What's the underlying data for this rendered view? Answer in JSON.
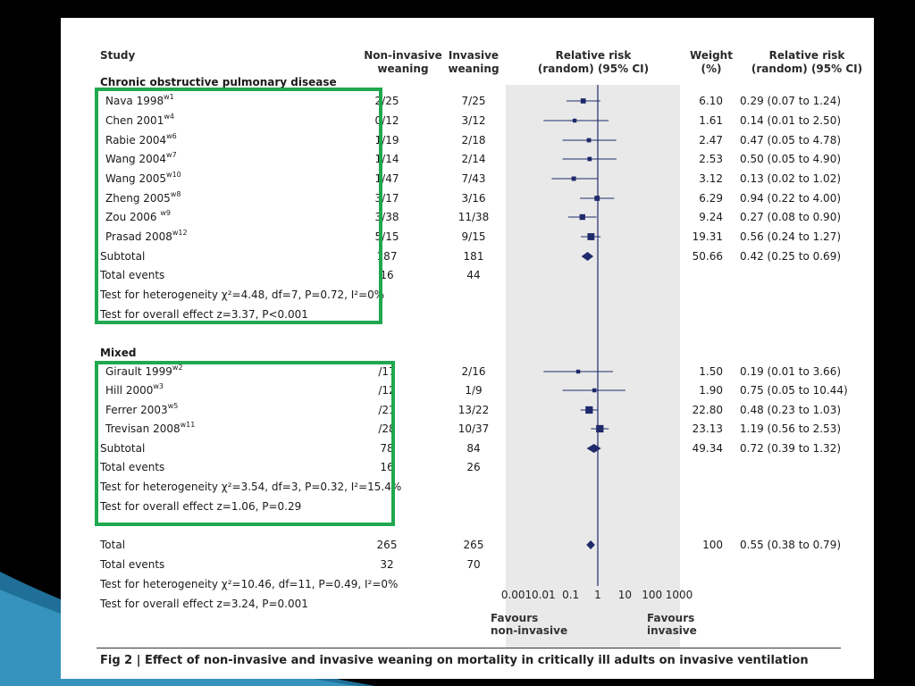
{
  "columns": {
    "study": "Study",
    "noninvasive": [
      "Non-invasive",
      "weaning"
    ],
    "invasive": [
      "Invasive",
      "weaning"
    ],
    "rr_plot": [
      "Relative risk",
      "(random) (95% CI)"
    ],
    "weight": [
      "Weight",
      "(%)"
    ],
    "rr_text": [
      "Relative risk",
      "(random) (95% CI)"
    ]
  },
  "groups": [
    {
      "title": "Chronic obstructive pulmonary disease",
      "studies": [
        {
          "name": "Nava 1998",
          "ref": "w1",
          "ni": "2/25",
          "inv": "7/25",
          "weight": "6.10",
          "ci_text": "0.29 (0.07 to 1.24)"
        },
        {
          "name": "Chen 2001",
          "ref": "w4",
          "ni": "0/12",
          "inv": "3/12",
          "weight": "1.61",
          "ci_text": "0.14 (0.01 to 2.50)"
        },
        {
          "name": "Rabie 2004",
          "ref": "w6",
          "ni": "1/19",
          "inv": "2/18",
          "weight": "2.47",
          "ci_text": "0.47 (0.05 to 4.78)"
        },
        {
          "name": "Wang 2004",
          "ref": "w7",
          "ni": "1/14",
          "inv": "2/14",
          "weight": "2.53",
          "ci_text": "0.50 (0.05 to 4.90)"
        },
        {
          "name": "Wang 2005",
          "ref": "w10",
          "ni": "1/47",
          "inv": "7/43",
          "weight": "3.12",
          "ci_text": "0.13 (0.02 to 1.02)"
        },
        {
          "name": "Zheng 2005",
          "ref": "w8",
          "ni": "3/17",
          "inv": "3/16",
          "weight": "6.29",
          "ci_text": "0.94 (0.22 to 4.00)"
        },
        {
          "name": "Zou 2006 ",
          "ref": "w9",
          "ni": "3/38",
          "inv": "11/38",
          "weight": "9.24",
          "ci_text": "0.27 (0.08 to 0.90)"
        },
        {
          "name": "Prasad 2008",
          "ref": "w12",
          "ni": "5/15",
          "inv": "9/15",
          "weight": "19.31",
          "ci_text": "0.56 (0.24 to 1.27)"
        }
      ],
      "subtotal": {
        "label": "Subtotal",
        "ni": "187",
        "inv": "181",
        "weight": "50.66",
        "ci_text": "0.42 (0.25 to 0.69)"
      },
      "events": {
        "label": "Total events",
        "ni": "16",
        "inv": "44"
      },
      "heterogeneity": "Test for heterogeneity χ²=4.48, df=7, P=0.72, I²=0%",
      "overall": "Test for overall effect z=3.37, P<0.001"
    },
    {
      "title": "Mixed",
      "studies": [
        {
          "name": "Girault 1999",
          "ref": "w2",
          "ni": "/17",
          "inv": "2/16",
          "weight": "1.50",
          "ci_text": "0.19 (0.01 to 3.66)"
        },
        {
          "name": "Hill 2000",
          "ref": "w3",
          "ni": "/12",
          "inv": "1/9",
          "weight": "1.90",
          "ci_text": "0.75 (0.05 to 10.44)"
        },
        {
          "name": "Ferrer 2003",
          "ref": "w5",
          "ni": "/21",
          "inv": "13/22",
          "weight": "22.80",
          "ci_text": "0.48 (0.23 to 1.03)"
        },
        {
          "name": "Trevisan 2008",
          "ref": "w11",
          "ni": "/28",
          "inv": "10/37",
          "weight": "23.13",
          "ci_text": "1.19 (0.56 to 2.53)"
        }
      ],
      "subtotal": {
        "label": "Subtotal",
        "ni": "78",
        "inv": "84",
        "weight": "49.34",
        "ci_text": "0.72 (0.39 to 1.32)"
      },
      "events": {
        "label": "Total events",
        "ni": "16",
        "inv": "26"
      },
      "heterogeneity": "Test for heterogeneity χ²=3.54, df=3, P=0.32, I²=15.4%",
      "overall": "Test for overall effect z=1.06, P=0.29"
    }
  ],
  "total": {
    "label": "Total",
    "ni": "265",
    "inv": "265",
    "weight": "100",
    "ci_text": "0.55 (0.38 to 0.79)"
  },
  "total_events": {
    "label": "Total events",
    "ni": "32",
    "inv": "70"
  },
  "total_heterogeneity": "Test for heterogeneity χ²=10.46, df=11, P=0.49, I²=0%",
  "total_overall": "Test for overall effect z=3.24, P=0.001",
  "favours": {
    "left": [
      "Favours",
      "non-invasive"
    ],
    "right": [
      "Favours",
      "invasive"
    ]
  },
  "caption": {
    "prefix": "Fig 2 |",
    "text": " Effect of non-invasive and invasive weaning on mortality in critically ill adults on invasive ventilation"
  },
  "colors": {
    "marker": "#1f2a6b",
    "highlight_box": "#1fa84f",
    "plot_bg": "#e9e9e9"
  },
  "chart_data": {
    "type": "forest",
    "x_scale": "log",
    "xlim": [
      0.001,
      1000
    ],
    "ticks": [
      0.001,
      0.01,
      0.1,
      1,
      10,
      100,
      1000
    ],
    "tick_labels": [
      "0.001",
      "0.01",
      "0.1",
      "1",
      "10",
      "100",
      "1000"
    ],
    "reference_line": 1,
    "studies": [
      {
        "name": "Nava 1998",
        "rr": 0.29,
        "lo": 0.07,
        "hi": 1.24,
        "weight": 6.1
      },
      {
        "name": "Chen 2001",
        "rr": 0.14,
        "lo": 0.01,
        "hi": 2.5,
        "weight": 1.61
      },
      {
        "name": "Rabie 2004",
        "rr": 0.47,
        "lo": 0.05,
        "hi": 4.78,
        "weight": 2.47
      },
      {
        "name": "Wang 2004",
        "rr": 0.5,
        "lo": 0.05,
        "hi": 4.9,
        "weight": 2.53
      },
      {
        "name": "Wang 2005",
        "rr": 0.13,
        "lo": 0.02,
        "hi": 1.02,
        "weight": 3.12
      },
      {
        "name": "Zheng 2005",
        "rr": 0.94,
        "lo": 0.22,
        "hi": 4.0,
        "weight": 6.29
      },
      {
        "name": "Zou 2006",
        "rr": 0.27,
        "lo": 0.08,
        "hi": 0.9,
        "weight": 9.24
      },
      {
        "name": "Prasad 2008",
        "rr": 0.56,
        "lo": 0.24,
        "hi": 1.27,
        "weight": 19.31
      },
      {
        "name": "Subtotal",
        "rr": 0.42,
        "lo": 0.25,
        "hi": 0.69,
        "weight": 50.66,
        "diamond": true
      },
      {
        "name": "Girault 1999",
        "rr": 0.19,
        "lo": 0.01,
        "hi": 3.66,
        "weight": 1.5
      },
      {
        "name": "Hill 2000",
        "rr": 0.75,
        "lo": 0.05,
        "hi": 10.44,
        "weight": 1.9
      },
      {
        "name": "Ferrer 2003",
        "rr": 0.48,
        "lo": 0.23,
        "hi": 1.03,
        "weight": 22.8
      },
      {
        "name": "Trevisan 2008",
        "rr": 1.19,
        "lo": 0.56,
        "hi": 2.53,
        "weight": 23.13
      },
      {
        "name": "Subtotal",
        "rr": 0.72,
        "lo": 0.39,
        "hi": 1.32,
        "weight": 49.34,
        "diamond": true
      },
      {
        "name": "Total",
        "rr": 0.55,
        "lo": 0.38,
        "hi": 0.79,
        "weight": 100,
        "diamond": true
      }
    ]
  }
}
